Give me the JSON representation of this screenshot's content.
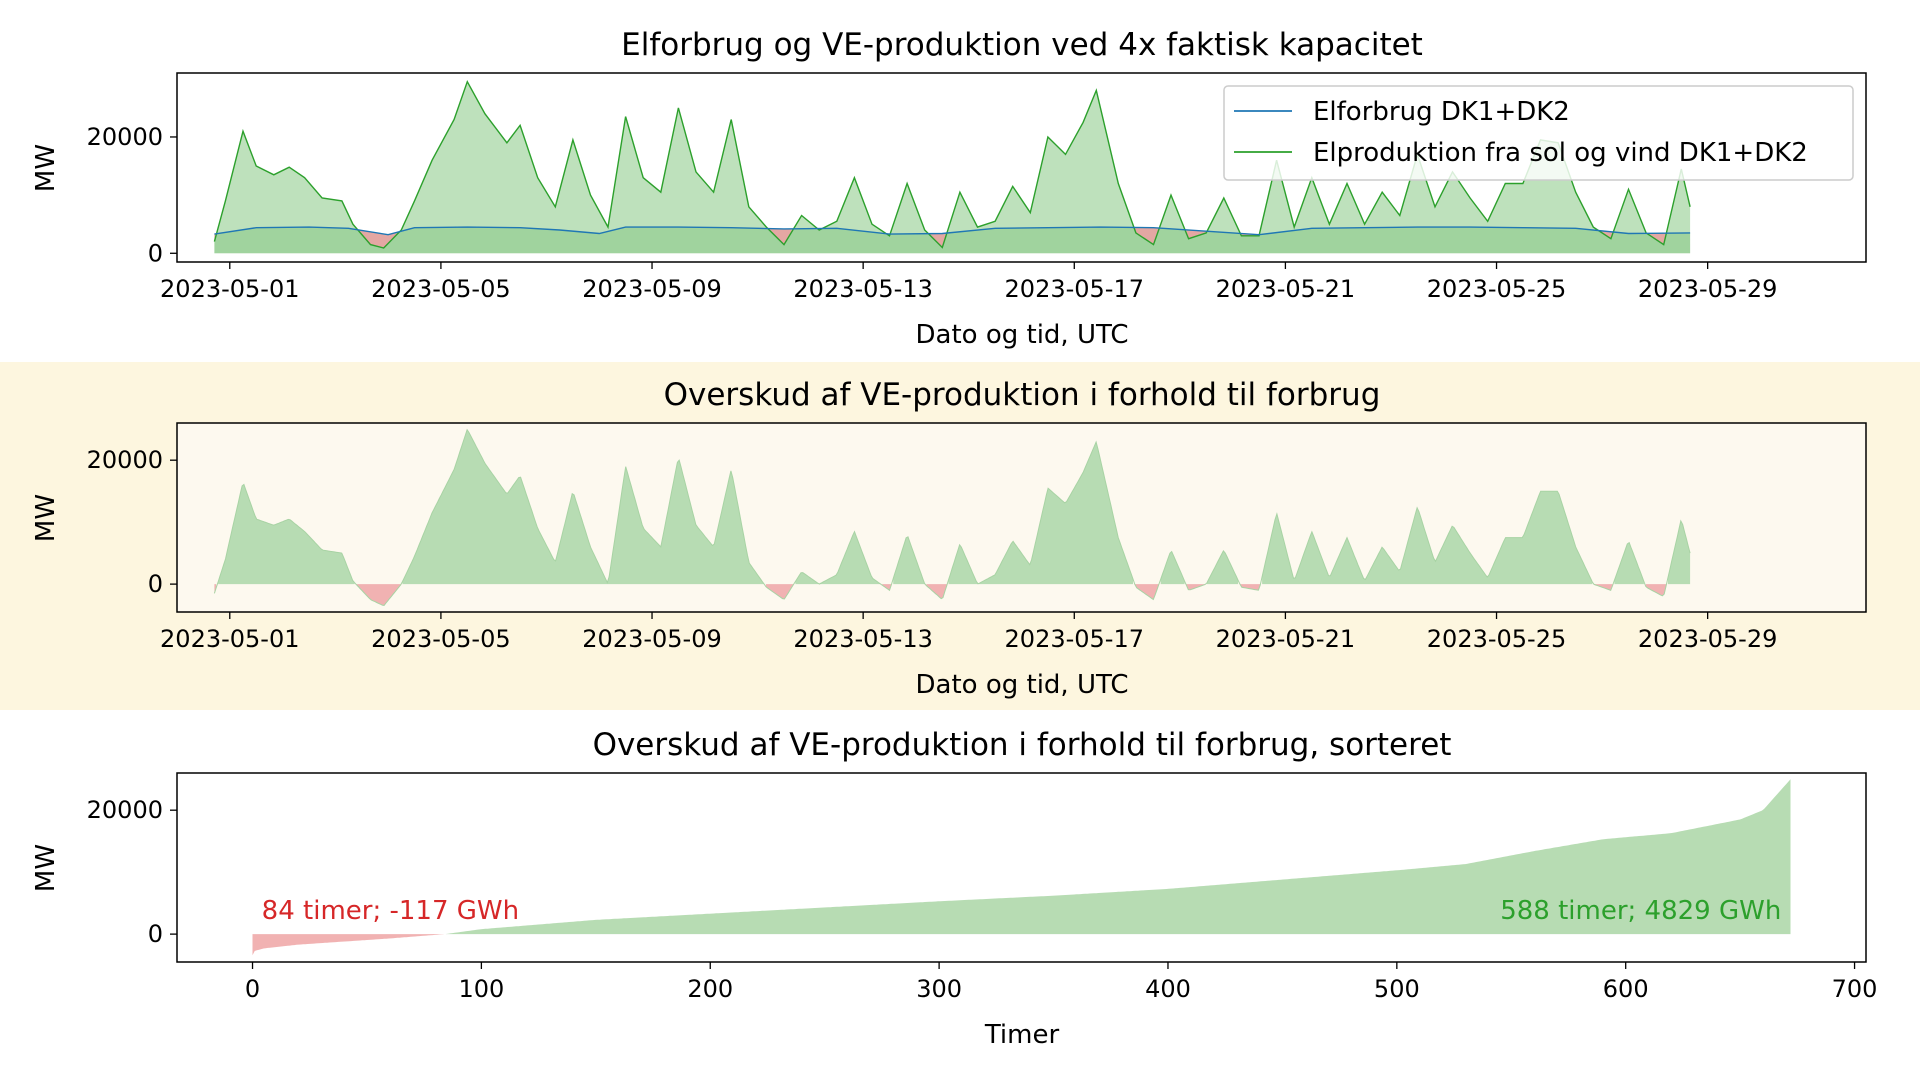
{
  "figure": {
    "highlight_band_color": "#fdf6df",
    "highlight_plot_color": "#fdf9ef"
  },
  "chart_data": [
    {
      "type": "area",
      "title": "Elforbrug og VE-produktion ved 4x faktisk kapacitet",
      "xlabel": "Dato og tid, UTC",
      "ylabel": "MW",
      "x_ticks": [
        "2023-05-01",
        "2023-05-05",
        "2023-05-09",
        "2023-05-13",
        "2023-05-17",
        "2023-05-21",
        "2023-05-25",
        "2023-05-29"
      ],
      "xlim": [
        "2023-04-30T00:00",
        "2023-06-01T00:00"
      ],
      "x_range_data": [
        "2023-04-30T17:00",
        "2023-05-28T16:00"
      ],
      "y_ticks": [
        0,
        20000
      ],
      "ylim": [
        -1500,
        31000
      ],
      "legend": {
        "position": "top-right",
        "entries": [
          "Elforbrug DK1+DK2",
          "Elproduktion fra sol og vind DK1+DK2"
        ]
      },
      "colors": {
        "consumption": "#1f77b4",
        "production": "#2ca02c",
        "surplus_fill": "#7dc47a",
        "deficit_fill": "#e8a0a0"
      },
      "series": [
        {
          "name": "Elforbrug DK1+DK2",
          "x": [
            "2023-04-30T17:00",
            "2023-05-01T12:00",
            "2023-05-02T12:00",
            "2023-05-03T06:00",
            "2023-05-04T00:00",
            "2023-05-04T12:00",
            "2023-05-05T12:00",
            "2023-05-06T12:00",
            "2023-05-07T06:00",
            "2023-05-08T00:00",
            "2023-05-08T12:00",
            "2023-05-09T12:00",
            "2023-05-10T12:00",
            "2023-05-11T12:00",
            "2023-05-12T12:00",
            "2023-05-13T12:00",
            "2023-05-14T12:00",
            "2023-05-15T12:00",
            "2023-05-16T12:00",
            "2023-05-17T12:00",
            "2023-05-18T12:00",
            "2023-05-19T12:00",
            "2023-05-20T12:00",
            "2023-05-21T12:00",
            "2023-05-22T12:00",
            "2023-05-23T12:00",
            "2023-05-24T12:00",
            "2023-05-25T12:00",
            "2023-05-26T12:00",
            "2023-05-27T12:00",
            "2023-05-28T16:00"
          ],
          "values": [
            3300,
            4400,
            4500,
            4300,
            3200,
            4400,
            4500,
            4400,
            4000,
            3400,
            4500,
            4500,
            4400,
            4200,
            4300,
            3300,
            3400,
            4300,
            4400,
            4500,
            4400,
            3800,
            3200,
            4300,
            4400,
            4500,
            4500,
            4400,
            4300,
            3400,
            3500
          ]
        },
        {
          "name": "Elproduktion fra sol og vind DK1+DK2",
          "x": [
            "2023-04-30T17:00",
            "2023-04-30T22:00",
            "2023-05-01T06:00",
            "2023-05-01T12:00",
            "2023-05-01T20:00",
            "2023-05-02T03:00",
            "2023-05-02T10:00",
            "2023-05-02T18:00",
            "2023-05-03T03:00",
            "2023-05-03T08:00",
            "2023-05-03T16:00",
            "2023-05-03T22:00",
            "2023-05-04T06:00",
            "2023-05-04T12:00",
            "2023-05-04T20:00",
            "2023-05-05T06:00",
            "2023-05-05T12:00",
            "2023-05-05T20:00",
            "2023-05-06T06:00",
            "2023-05-06T12:00",
            "2023-05-06T20:00",
            "2023-05-07T04:00",
            "2023-05-07T12:00",
            "2023-05-07T20:00",
            "2023-05-08T04:00",
            "2023-05-08T12:00",
            "2023-05-08T20:00",
            "2023-05-09T04:00",
            "2023-05-09T12:00",
            "2023-05-09T20:00",
            "2023-05-10T04:00",
            "2023-05-10T12:00",
            "2023-05-10T20:00",
            "2023-05-11T04:00",
            "2023-05-11T12:00",
            "2023-05-11T20:00",
            "2023-05-12T04:00",
            "2023-05-12T12:00",
            "2023-05-12T20:00",
            "2023-05-13T04:00",
            "2023-05-13T12:00",
            "2023-05-13T20:00",
            "2023-05-14T04:00",
            "2023-05-14T12:00",
            "2023-05-14T20:00",
            "2023-05-15T04:00",
            "2023-05-15T12:00",
            "2023-05-15T20:00",
            "2023-05-16T04:00",
            "2023-05-16T12:00",
            "2023-05-16T20:00",
            "2023-05-17T04:00",
            "2023-05-17T10:00",
            "2023-05-17T20:00",
            "2023-05-18T04:00",
            "2023-05-18T12:00",
            "2023-05-18T20:00",
            "2023-05-19T04:00",
            "2023-05-19T12:00",
            "2023-05-19T20:00",
            "2023-05-20T04:00",
            "2023-05-20T12:00",
            "2023-05-20T20:00",
            "2023-05-21T04:00",
            "2023-05-21T12:00",
            "2023-05-21T20:00",
            "2023-05-22T04:00",
            "2023-05-22T12:00",
            "2023-05-22T20:00",
            "2023-05-23T04:00",
            "2023-05-23T12:00",
            "2023-05-23T20:00",
            "2023-05-24T04:00",
            "2023-05-24T12:00",
            "2023-05-24T20:00",
            "2023-05-25T04:00",
            "2023-05-25T12:00",
            "2023-05-25T20:00",
            "2023-05-26T04:00",
            "2023-05-26T12:00",
            "2023-05-26T20:00",
            "2023-05-27T04:00",
            "2023-05-27T12:00",
            "2023-05-27T20:00",
            "2023-05-28T04:00",
            "2023-05-28T12:00",
            "2023-05-28T16:00"
          ],
          "values": [
            2000,
            9000,
            21000,
            15000,
            13500,
            14800,
            13000,
            9500,
            9000,
            5000,
            1500,
            900,
            4000,
            9000,
            16000,
            23000,
            29500,
            24000,
            19000,
            22000,
            13000,
            8000,
            19500,
            10000,
            4500,
            23500,
            13000,
            10500,
            25000,
            14000,
            10500,
            23000,
            8000,
            4500,
            1500,
            6500,
            4000,
            5500,
            13000,
            5000,
            3000,
            12000,
            4000,
            1000,
            10500,
            4500,
            5500,
            11500,
            7000,
            20000,
            17000,
            22500,
            28000,
            12000,
            3500,
            1500,
            10000,
            2500,
            3500,
            9500,
            3000,
            3000,
            16000,
            4500,
            13000,
            5000,
            12000,
            5000,
            10500,
            6500,
            17000,
            8000,
            14000,
            9500,
            5500,
            12000,
            12000,
            19500,
            19000,
            10500,
            4500,
            2500,
            11000,
            3500,
            1500,
            14500,
            8000
          ]
        }
      ]
    },
    {
      "type": "area",
      "title": "Overskud af VE-produktion i forhold til forbrug",
      "xlabel": "Dato og tid, UTC",
      "ylabel": "MW",
      "x_ticks": [
        "2023-05-01",
        "2023-05-05",
        "2023-05-09",
        "2023-05-13",
        "2023-05-17",
        "2023-05-21",
        "2023-05-25",
        "2023-05-29"
      ],
      "xlim": [
        "2023-04-30T00:00",
        "2023-06-01T00:00"
      ],
      "y_ticks": [
        0,
        20000
      ],
      "ylim": [
        -4500,
        26000
      ],
      "colors": {
        "positive_fill": "#b7dcb3",
        "negative_fill": "#f1b2b2"
      },
      "series": [
        {
          "name": "",
          "x": [
            "2023-04-30T17:00",
            "2023-04-30T22:00",
            "2023-05-01T06:00",
            "2023-05-01T12:00",
            "2023-05-01T20:00",
            "2023-05-02T03:00",
            "2023-05-02T10:00",
            "2023-05-02T18:00",
            "2023-05-03T03:00",
            "2023-05-03T08:00",
            "2023-05-03T16:00",
            "2023-05-03T22:00",
            "2023-05-04T06:00",
            "2023-05-04T12:00",
            "2023-05-04T20:00",
            "2023-05-05T06:00",
            "2023-05-05T12:00",
            "2023-05-05T20:00",
            "2023-05-06T06:00",
            "2023-05-06T12:00",
            "2023-05-06T20:00",
            "2023-05-07T04:00",
            "2023-05-07T12:00",
            "2023-05-07T20:00",
            "2023-05-08T04:00",
            "2023-05-08T12:00",
            "2023-05-08T20:00",
            "2023-05-09T04:00",
            "2023-05-09T12:00",
            "2023-05-09T20:00",
            "2023-05-10T04:00",
            "2023-05-10T12:00",
            "2023-05-10T20:00",
            "2023-05-11T04:00",
            "2023-05-11T12:00",
            "2023-05-11T20:00",
            "2023-05-12T04:00",
            "2023-05-12T12:00",
            "2023-05-12T20:00",
            "2023-05-13T04:00",
            "2023-05-13T12:00",
            "2023-05-13T20:00",
            "2023-05-14T04:00",
            "2023-05-14T12:00",
            "2023-05-14T20:00",
            "2023-05-15T04:00",
            "2023-05-15T12:00",
            "2023-05-15T20:00",
            "2023-05-16T04:00",
            "2023-05-16T12:00",
            "2023-05-16T20:00",
            "2023-05-17T04:00",
            "2023-05-17T10:00",
            "2023-05-17T20:00",
            "2023-05-18T04:00",
            "2023-05-18T12:00",
            "2023-05-18T20:00",
            "2023-05-19T04:00",
            "2023-05-19T12:00",
            "2023-05-19T20:00",
            "2023-05-20T04:00",
            "2023-05-20T12:00",
            "2023-05-20T20:00",
            "2023-05-21T04:00",
            "2023-05-21T12:00",
            "2023-05-21T20:00",
            "2023-05-22T04:00",
            "2023-05-22T12:00",
            "2023-05-22T20:00",
            "2023-05-23T04:00",
            "2023-05-23T12:00",
            "2023-05-23T20:00",
            "2023-05-24T04:00",
            "2023-05-24T12:00",
            "2023-05-24T20:00",
            "2023-05-25T04:00",
            "2023-05-25T12:00",
            "2023-05-25T20:00",
            "2023-05-26T04:00",
            "2023-05-26T12:00",
            "2023-05-26T20:00",
            "2023-05-27T04:00",
            "2023-05-27T12:00",
            "2023-05-27T20:00",
            "2023-05-28T04:00",
            "2023-05-28T12:00",
            "2023-05-28T16:00"
          ],
          "values": [
            -1500,
            4000,
            16500,
            10500,
            9500,
            10500,
            8500,
            5500,
            5000,
            500,
            -2500,
            -3500,
            0,
            4500,
            11500,
            18500,
            25000,
            19500,
            14500,
            17500,
            9000,
            3500,
            15000,
            6000,
            0,
            19000,
            9000,
            6000,
            20500,
            9500,
            6000,
            18500,
            3500,
            -500,
            -2500,
            2000,
            0,
            1500,
            8500,
            1000,
            -1000,
            8000,
            0,
            -2500,
            6500,
            0,
            1500,
            7000,
            3000,
            15500,
            13000,
            18000,
            23000,
            7500,
            -500,
            -2500,
            5500,
            -1000,
            0,
            5500,
            -500,
            -1000,
            11500,
            500,
            8500,
            1000,
            7500,
            500,
            6000,
            2000,
            12500,
            3500,
            9500,
            5000,
            1000,
            7500,
            7500,
            15000,
            15000,
            6000,
            0,
            -1000,
            7000,
            -500,
            -2000,
            10500,
            5000
          ]
        }
      ]
    },
    {
      "type": "area",
      "title": "Overskud af VE-produktion i forhold til forbrug, sorteret",
      "xlabel": "Timer",
      "ylabel": "MW",
      "x_ticks": [
        0,
        100,
        200,
        300,
        400,
        500,
        600,
        700
      ],
      "xlim": [
        -33,
        705
      ],
      "y_ticks": [
        0,
        20000
      ],
      "ylim": [
        -4500,
        26000
      ],
      "colors": {
        "positive_fill": "#b7dcb3",
        "negative_fill": "#f1b2b2",
        "negative_text": "#d62728",
        "positive_text": "#2ca02c"
      },
      "annotations": [
        {
          "text": "84 timer; -117 GWh",
          "x": 4,
          "y": 2400,
          "anchor": "start",
          "color_key": "negative_text"
        },
        {
          "text": "588 timer; 4829 GWh",
          "x": 668,
          "y": 2400,
          "anchor": "end",
          "color_key": "positive_text"
        }
      ],
      "series": [
        {
          "name": "",
          "x": [
            0,
            1,
            5,
            20,
            40,
            60,
            84,
            100,
            150,
            200,
            250,
            300,
            350,
            400,
            450,
            500,
            530,
            560,
            590,
            620,
            650,
            660,
            672
          ],
          "values": [
            -3400,
            -2700,
            -2300,
            -1700,
            -1200,
            -700,
            0,
            800,
            2300,
            3300,
            4300,
            5300,
            6200,
            7300,
            8800,
            10300,
            11300,
            13400,
            15300,
            16300,
            18500,
            20000,
            25000
          ]
        }
      ]
    }
  ]
}
